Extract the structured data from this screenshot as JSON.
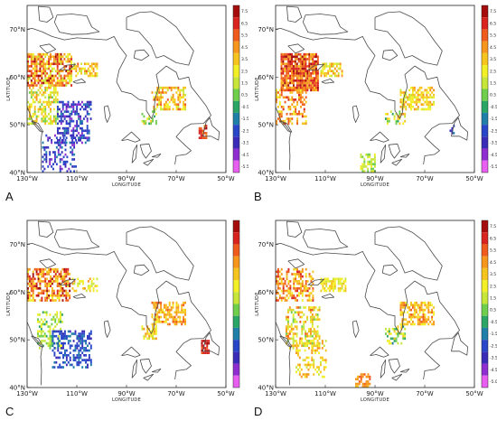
{
  "panels": [
    {
      "label": "A",
      "colorbar": true,
      "seed": 11,
      "bias": 0.0
    },
    {
      "label": "B",
      "colorbar": true,
      "seed": 23,
      "bias": 0.5
    },
    {
      "label": "C",
      "colorbar": false,
      "seed": 37,
      "bias": -0.2
    },
    {
      "label": "D",
      "colorbar": true,
      "seed": 53,
      "bias": 0.2
    }
  ],
  "axes": {
    "xlabel": "LONGITUDE",
    "ylabel": "LATITUDE",
    "xticks": [
      "130°W",
      "110°W",
      "90°W",
      "70°W",
      "50°W"
    ],
    "yticks": [
      "70°N",
      "60°N",
      "50°N",
      "40°N"
    ]
  },
  "colorbars": {
    "A": [
      "7.5",
      "6.5",
      "5.5",
      "4.5",
      "3.5",
      "2.5",
      "1.5",
      "0.5",
      "-0.5",
      "-1.5",
      "-2.5",
      "-3.5",
      "-4.5",
      "-5.5"
    ],
    "B": [
      "7.5",
      "6.5",
      "5.5",
      "4.5",
      "3.5",
      "2.5",
      "1.5",
      "0.5",
      "-0.5",
      "-1.5",
      "-2.5",
      "-3.5",
      "-4.5",
      "-5.5"
    ],
    "D": [
      "7.5",
      "6.5",
      "5.5",
      "4.5",
      "3.5",
      "2.5",
      "1.5",
      "0.5",
      "-0.5",
      "-1.5",
      "-2.5",
      "-3.5",
      "-4.5",
      "-5.0"
    ]
  },
  "colors": [
    "#a50d0d",
    "#d8231f",
    "#ef5b1c",
    "#f7961c",
    "#f6c41e",
    "#f2ef27",
    "#c8e63a",
    "#6fce4c",
    "#2aa566",
    "#1f7fa8",
    "#2846c8",
    "#3a2bb8",
    "#8e2ed0",
    "#e85ef0"
  ]
}
